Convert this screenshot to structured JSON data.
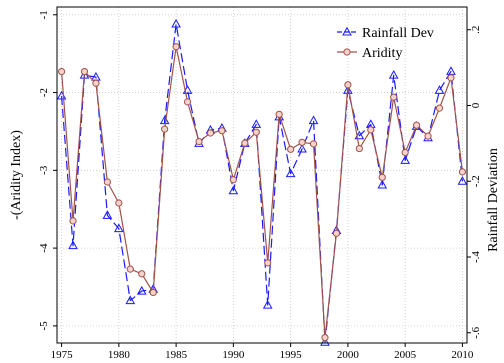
{
  "chart_data": {
    "type": "line",
    "title": "",
    "xlabel": "",
    "ylabel_left": "-(Aridity Index)",
    "ylabel_right": "Rainfall Deviation",
    "xlim": [
      1974.6,
      2010.4
    ],
    "ylim_left": [
      -5.22,
      -0.9
    ],
    "ylim_right": [
      -0.627,
      0.26
    ],
    "x_ticks": [
      1975,
      1980,
      1985,
      1990,
      1995,
      2000,
      2005,
      2010
    ],
    "x_tick_labels": [
      "1975",
      "1980",
      "1985",
      "1990",
      "1995",
      "2000",
      "2005",
      "2010"
    ],
    "y_left_ticks": [
      -1,
      -2,
      -3,
      -4,
      -5
    ],
    "y_left_tick_labels": [
      "-1",
      "-2",
      "-3",
      "-4",
      "-5"
    ],
    "y_right_ticks": [
      0.2,
      0,
      -0.2,
      -0.4,
      -0.6
    ],
    "y_right_tick_labels": [
      ".2",
      "0",
      "-.2",
      "-.4",
      "-.6"
    ],
    "grid": true,
    "legend_position": "top-right",
    "x": [
      1975,
      1976,
      1977,
      1978,
      1979,
      1980,
      1981,
      1982,
      1983,
      1984,
      1985,
      1986,
      1987,
      1988,
      1989,
      1990,
      1991,
      1992,
      1993,
      1994,
      1995,
      1996,
      1997,
      1998,
      1999,
      2000,
      2001,
      2002,
      2003,
      2004,
      2005,
      2006,
      2007,
      2008,
      2009,
      2010
    ],
    "series": [
      {
        "name": "Rainfall Dev",
        "axis": "right",
        "color": "#1a1aff",
        "marker": "triangle",
        "dash": "long",
        "values": [
          0.025,
          -0.37,
          0.08,
          0.075,
          -0.29,
          -0.325,
          -0.515,
          -0.49,
          -0.485,
          -0.04,
          0.215,
          0.04,
          -0.1,
          -0.065,
          -0.06,
          -0.225,
          -0.1,
          -0.05,
          -0.527,
          -0.03,
          -0.18,
          -0.115,
          -0.04,
          -0.625,
          -0.33,
          0.04,
          -0.08,
          -0.05,
          -0.21,
          0.08,
          -0.145,
          -0.055,
          -0.085,
          0.04,
          0.09,
          -0.2
        ]
      },
      {
        "name": "Aridity",
        "axis": "left",
        "color": "#a0524a",
        "marker": "circle",
        "dash": "solid",
        "values": [
          -1.73,
          -3.65,
          -1.73,
          -1.88,
          -3.15,
          -3.42,
          -4.27,
          -4.33,
          -4.57,
          -2.47,
          -1.41,
          -2.12,
          -2.63,
          -2.52,
          -2.49,
          -3.12,
          -2.65,
          -2.51,
          -4.19,
          -2.28,
          -2.73,
          -2.64,
          -2.66,
          -5.15,
          -3.81,
          -1.9,
          -2.72,
          -2.48,
          -3.09,
          -2.06,
          -2.77,
          -2.42,
          -2.56,
          -2.2,
          -1.81,
          -3.02
        ]
      }
    ]
  }
}
